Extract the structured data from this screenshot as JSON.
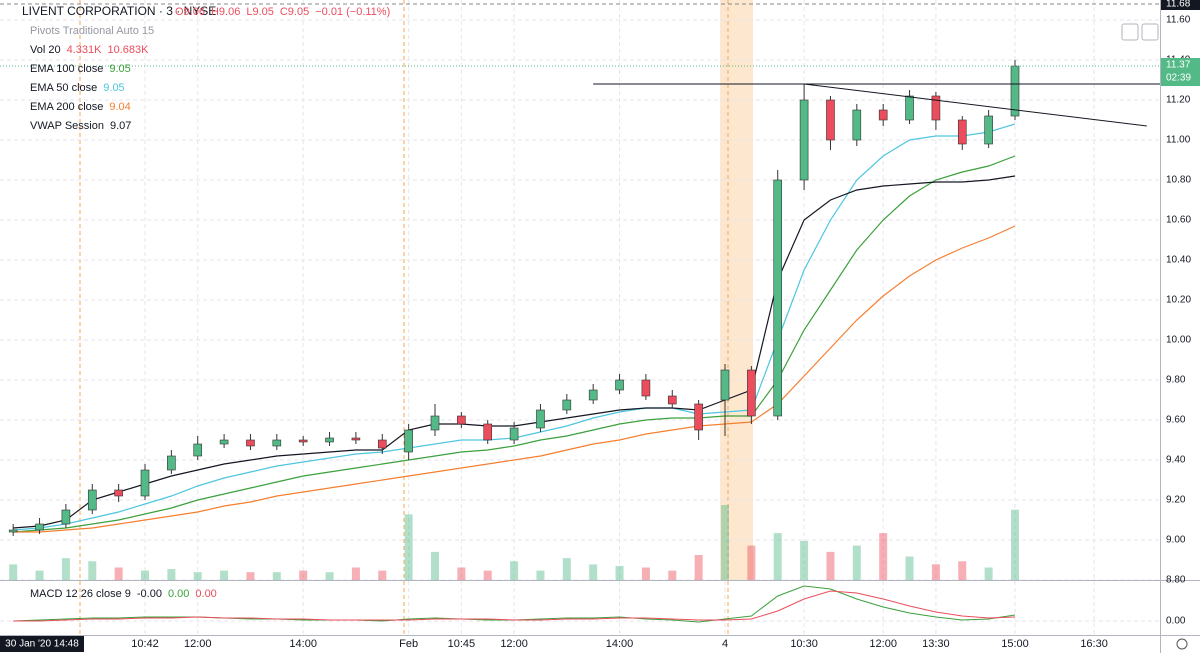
{
  "header": {
    "symbol": "LIVENT CORPORATION · 3 · NYSE",
    "ohlc": [
      "O9.06",
      "H9.06",
      "L9.05",
      "C9.05",
      "−0.01 (−0.11%)"
    ],
    "crosshair_time": "30 Jan '20 14:48"
  },
  "legend": [
    {
      "name": "Pivots Traditional Auto 15",
      "values": []
    },
    {
      "name": "Vol 20",
      "values": [
        "4.331K",
        "10.683K"
      ]
    },
    {
      "name": "EMA 100 close",
      "values": [
        "9.05"
      ]
    },
    {
      "name": "EMA 50 close",
      "values": [
        "9.05"
      ]
    },
    {
      "name": "EMA 200 close",
      "values": [
        "9.04"
      ]
    },
    {
      "name": "VWAP Session",
      "values": [
        "9.07"
      ]
    }
  ],
  "macd_legend": {
    "name": "MACD 12 26 close 9",
    "values": [
      "-0.00",
      "0.00",
      "0.00"
    ]
  },
  "chart_data": {
    "type": "candlestick",
    "categories": [
      null,
      null,
      null,
      null,
      null,
      "10:42",
      null,
      "12:00",
      null,
      null,
      null,
      "14:00",
      null,
      null,
      null,
      "Feb",
      null,
      "10:45",
      null,
      "12:00",
      null,
      null,
      null,
      "14:00",
      null,
      null,
      null,
      "4",
      null,
      null,
      "10:30",
      null,
      null,
      "12:00",
      null,
      "13:30",
      null,
      null,
      "15:00",
      null,
      null,
      "16:30",
      null,
      null
    ],
    "open": [
      9.04,
      9.05,
      9.08,
      9.15,
      9.25,
      9.22,
      9.35,
      9.42,
      9.48,
      9.5,
      9.47,
      9.5,
      9.49,
      9.51,
      9.5,
      9.44,
      9.55,
      9.62,
      9.58,
      9.5,
      9.56,
      9.65,
      9.7,
      9.75,
      9.8,
      9.72,
      9.68,
      9.7,
      9.85,
      9.62,
      10.8,
      11.2,
      11.0,
      11.15,
      11.1,
      11.22,
      11.1,
      10.98,
      11.12,
      null,
      null,
      null,
      null,
      null
    ],
    "high": [
      9.08,
      9.11,
      9.18,
      9.28,
      9.28,
      9.38,
      9.45,
      9.52,
      9.53,
      9.53,
      9.53,
      9.52,
      9.54,
      9.54,
      9.53,
      9.58,
      9.68,
      9.64,
      9.6,
      9.59,
      9.68,
      9.73,
      9.78,
      9.83,
      9.83,
      9.75,
      9.7,
      9.88,
      9.87,
      10.85,
      11.28,
      11.22,
      11.18,
      11.18,
      11.25,
      11.24,
      11.12,
      11.15,
      11.4,
      null,
      null,
      null,
      null,
      null
    ],
    "low": [
      9.02,
      9.03,
      9.06,
      9.13,
      9.19,
      9.2,
      9.33,
      9.4,
      9.46,
      9.45,
      9.45,
      9.47,
      9.47,
      9.48,
      9.43,
      9.4,
      9.52,
      9.56,
      9.48,
      9.48,
      9.54,
      9.63,
      9.68,
      9.73,
      9.7,
      9.66,
      9.5,
      9.52,
      9.58,
      9.6,
      10.75,
      10.95,
      10.97,
      11.07,
      11.08,
      11.05,
      10.95,
      10.96,
      11.1,
      null,
      null,
      null,
      null,
      null
    ],
    "close": [
      9.05,
      9.08,
      9.15,
      9.25,
      9.22,
      9.35,
      9.42,
      9.48,
      9.5,
      9.47,
      9.5,
      9.49,
      9.51,
      9.5,
      9.46,
      9.55,
      9.62,
      9.58,
      9.5,
      9.56,
      9.65,
      9.7,
      9.75,
      9.8,
      9.72,
      9.68,
      9.55,
      9.85,
      9.62,
      10.8,
      11.2,
      11.0,
      11.15,
      11.1,
      11.22,
      11.1,
      10.98,
      11.12,
      11.37,
      null,
      null,
      null,
      null,
      null
    ],
    "up_color": "#53b987",
    "down_color": "#eb4d5c",
    "series": [
      {
        "name": "EMA 50",
        "color": "#4ec6e0",
        "values": [
          9.05,
          9.06,
          9.08,
          9.11,
          9.14,
          9.18,
          9.22,
          9.27,
          9.31,
          9.34,
          9.37,
          9.39,
          9.41,
          9.43,
          9.44,
          9.46,
          9.48,
          9.5,
          9.5,
          9.51,
          9.54,
          9.57,
          9.61,
          9.64,
          9.66,
          9.66,
          9.63,
          9.64,
          9.65,
          10.0,
          10.35,
          10.6,
          10.8,
          10.92,
          11.0,
          11.02,
          11.02,
          11.04,
          11.08,
          null,
          null,
          null,
          null,
          null
        ]
      },
      {
        "name": "EMA 100",
        "color": "#3ca03c",
        "values": [
          9.04,
          9.05,
          9.06,
          9.08,
          9.1,
          9.13,
          9.16,
          9.2,
          9.23,
          9.26,
          9.29,
          9.32,
          9.34,
          9.36,
          9.38,
          9.4,
          9.42,
          9.44,
          9.45,
          9.47,
          9.5,
          9.52,
          9.55,
          9.58,
          9.6,
          9.61,
          9.61,
          9.62,
          9.62,
          9.8,
          10.05,
          10.25,
          10.45,
          10.6,
          10.72,
          10.8,
          10.84,
          10.87,
          10.92,
          null,
          null,
          null,
          null,
          null
        ]
      },
      {
        "name": "EMA 200",
        "color": "#f57f30",
        "values": [
          9.04,
          9.04,
          9.05,
          9.06,
          9.08,
          9.1,
          9.12,
          9.14,
          9.17,
          9.19,
          9.22,
          9.24,
          9.26,
          9.28,
          9.3,
          9.32,
          9.34,
          9.36,
          9.38,
          9.4,
          9.42,
          9.45,
          9.48,
          9.5,
          9.53,
          9.55,
          9.57,
          9.58,
          9.59,
          9.68,
          9.82,
          9.96,
          10.1,
          10.22,
          10.32,
          10.4,
          10.46,
          10.51,
          10.57,
          null,
          null,
          null,
          null,
          null
        ]
      },
      {
        "name": "VWAP",
        "color": "#131722",
        "values": [
          9.06,
          9.07,
          9.1,
          9.2,
          9.24,
          9.28,
          9.32,
          9.35,
          9.38,
          9.4,
          9.42,
          9.43,
          9.44,
          9.45,
          9.45,
          9.55,
          9.58,
          9.58,
          9.57,
          9.57,
          9.59,
          9.61,
          9.63,
          9.65,
          9.66,
          9.66,
          9.65,
          9.7,
          9.75,
          10.3,
          10.6,
          10.7,
          10.75,
          10.77,
          10.78,
          10.79,
          10.79,
          10.8,
          10.82,
          null,
          null,
          null,
          null,
          null
        ]
      }
    ],
    "volume": [
      10,
      6,
      14,
      12,
      8,
      6,
      7,
      5,
      6,
      5,
      5,
      6,
      5,
      8,
      6,
      42,
      18,
      8,
      6,
      12,
      6,
      14,
      10,
      9,
      8,
      6,
      16,
      48,
      22,
      30,
      25,
      18,
      22,
      30,
      15,
      10,
      12,
      8,
      45,
      null,
      null,
      null,
      null,
      null
    ],
    "ylim": [
      8.8,
      11.7
    ],
    "yticks": [
      {
        "value": 8.8,
        "label": "8.80"
      },
      {
        "value": 9.0,
        "label": "9.00"
      },
      {
        "value": 9.2,
        "label": "9.20"
      },
      {
        "value": 9.4,
        "label": "9.40"
      },
      {
        "value": 9.6,
        "label": "9.60"
      },
      {
        "value": 9.8,
        "label": "9.80"
      },
      {
        "value": 10.0,
        "label": "10.00"
      },
      {
        "value": 10.2,
        "label": "10.20"
      },
      {
        "value": 10.4,
        "label": "10.40"
      },
      {
        "value": 10.6,
        "label": "10.60"
      },
      {
        "value": 10.8,
        "label": "10.80"
      },
      {
        "value": 11.0,
        "label": "11.00"
      },
      {
        "value": 11.2,
        "label": "11.20"
      },
      {
        "value": 11.4,
        "label": "11.40"
      },
      {
        "value": 11.6,
        "label": "11.60"
      }
    ],
    "last_price": 11.37,
    "countdown": "02:39",
    "crosshair_price": 11.68,
    "drawings": [
      {
        "type": "horizontal-ray",
        "from": 22,
        "price": 11.28
      },
      {
        "type": "trend-line",
        "from": 30,
        "to": 43,
        "price_from": 11.28,
        "price_to": 11.07
      }
    ],
    "macd": {
      "macd_color": "#3ca03c",
      "signal_color": "#eb4d5c",
      "macd": [
        0.0,
        0.01,
        0.02,
        0.03,
        0.03,
        0.04,
        0.04,
        0.04,
        0.03,
        0.02,
        0.02,
        0.01,
        0.01,
        0.01,
        0.0,
        0.02,
        0.03,
        0.02,
        0.01,
        0.01,
        0.02,
        0.03,
        0.03,
        0.04,
        0.02,
        0.01,
        -0.01,
        0.02,
        0.05,
        0.25,
        0.35,
        0.32,
        0.22,
        0.14,
        0.08,
        0.04,
        0.01,
        0.02,
        0.06,
        null,
        null,
        null,
        null,
        null
      ],
      "signal": [
        0.0,
        0.0,
        0.01,
        0.02,
        0.02,
        0.03,
        0.03,
        0.04,
        0.03,
        0.03,
        0.02,
        0.02,
        0.01,
        0.01,
        0.01,
        0.01,
        0.02,
        0.02,
        0.02,
        0.01,
        0.01,
        0.02,
        0.02,
        0.03,
        0.03,
        0.02,
        0.01,
        0.01,
        0.02,
        0.1,
        0.22,
        0.3,
        0.28,
        0.22,
        0.15,
        0.09,
        0.05,
        0.03,
        0.04,
        null,
        null,
        null,
        null,
        null
      ],
      "ylim": [
        -0.14,
        0.36
      ],
      "yticks": [
        {
          "value": 0,
          "label": "0.00"
        }
      ]
    }
  }
}
